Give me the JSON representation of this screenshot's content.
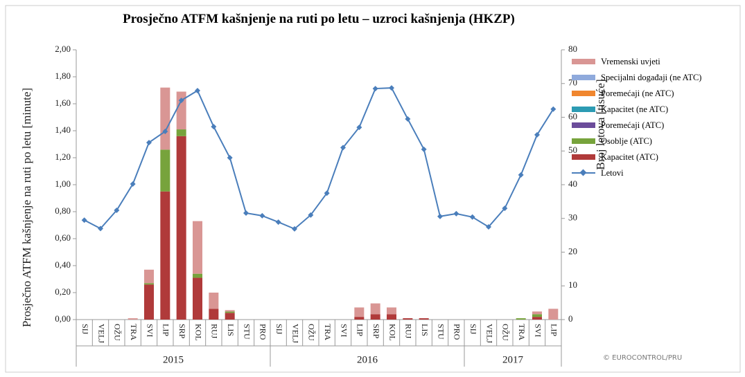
{
  "chart_data": {
    "type": "bar",
    "title": "Prosječno ATFM kašnjenje na ruti po letu – uzroci kašnjenja (HKZP)",
    "y_label": "Prosječno ATFM kašnjenje na ruti po letu [minute]",
    "y2_label": "Broj letova [tisuće]",
    "source": "© EUROCONTROL/PRU",
    "groups": [
      {
        "name": "2015",
        "categories": [
          "SIJ",
          "VELJ",
          "OŽU",
          "TRA",
          "SVI",
          "LIP",
          "SRP",
          "KOL",
          "RUJ",
          "LIS",
          "STU",
          "PRO"
        ]
      },
      {
        "name": "2016",
        "categories": [
          "SIJ",
          "VELJ",
          "OŽU",
          "TRA",
          "SVI",
          "LIP",
          "SRP",
          "KOL",
          "RUJ",
          "LIS",
          "STU",
          "PRO"
        ]
      },
      {
        "name": "2017",
        "categories": [
          "SIJ",
          "VELJ",
          "OŽU",
          "TRA",
          "SVI",
          "LIP"
        ]
      }
    ],
    "stacked": true,
    "grid": false,
    "legend": "right",
    "ylim": [
      0,
      2
    ],
    "yticks": [
      {
        "value": 0,
        "label": "0,00"
      },
      {
        "value": 0.2,
        "label": "0,20"
      },
      {
        "value": 0.4,
        "label": "0,40"
      },
      {
        "value": 0.6,
        "label": "0,60"
      },
      {
        "value": 0.8,
        "label": "0,80"
      },
      {
        "value": 1,
        "label": "1,00"
      },
      {
        "value": 1.2,
        "label": "1,20"
      },
      {
        "value": 1.4,
        "label": "1,40"
      },
      {
        "value": 1.6,
        "label": "1,60"
      },
      {
        "value": 1.8,
        "label": "1,80"
      },
      {
        "value": 2,
        "label": "2,00"
      }
    ],
    "y2lim": [
      0,
      80
    ],
    "y2ticks": [
      0,
      10,
      20,
      30,
      40,
      50,
      60,
      70,
      80
    ],
    "series": [
      {
        "name": "Kapacitet (ATC)",
        "color": "#b03a3a",
        "values": [
          0,
          0,
          0,
          0,
          0.26,
          0.95,
          1.36,
          0.31,
          0.08,
          0.05,
          0,
          0,
          0,
          0,
          0,
          0,
          0,
          0.02,
          0.04,
          0.04,
          0.01,
          0.01,
          0,
          0,
          0,
          0,
          0,
          0,
          0.02,
          0
        ]
      },
      {
        "name": "Osoblje (ATC)",
        "color": "#77a33c",
        "values": [
          0,
          0,
          0,
          0,
          0.01,
          0.31,
          0.05,
          0.03,
          0,
          0.01,
          0,
          0,
          0,
          0,
          0,
          0,
          0,
          0,
          0,
          0,
          0,
          0,
          0,
          0,
          0,
          0,
          0,
          0.01,
          0.02,
          0
        ]
      },
      {
        "name": "Poremećaji (ATC)",
        "color": "#6b4c9a",
        "values": [
          0,
          0,
          0,
          0,
          0,
          0,
          0,
          0,
          0,
          0,
          0,
          0,
          0,
          0,
          0,
          0,
          0,
          0,
          0,
          0,
          0,
          0,
          0,
          0,
          0,
          0,
          0,
          0,
          0,
          0
        ]
      },
      {
        "name": "Kapacitet (ne ATC)",
        "color": "#2c9bb3",
        "values": [
          0,
          0,
          0,
          0,
          0,
          0,
          0,
          0,
          0,
          0,
          0,
          0,
          0,
          0,
          0,
          0,
          0,
          0,
          0,
          0,
          0,
          0,
          0,
          0,
          0,
          0,
          0,
          0,
          0,
          0
        ]
      },
      {
        "name": "Poremećaji (ne ATC)",
        "color": "#f0862e",
        "values": [
          0,
          0,
          0,
          0,
          0,
          0,
          0,
          0,
          0,
          0,
          0,
          0,
          0,
          0,
          0,
          0,
          0,
          0,
          0,
          0,
          0,
          0,
          0,
          0,
          0,
          0,
          0,
          0,
          0,
          0
        ]
      },
      {
        "name": "Specijalni događaji (ne ATC)",
        "color": "#8faadc",
        "values": [
          0,
          0,
          0,
          0,
          0,
          0,
          0,
          0,
          0,
          0,
          0,
          0,
          0,
          0,
          0,
          0,
          0,
          0,
          0,
          0,
          0,
          0,
          0,
          0,
          0,
          0,
          0,
          0,
          0,
          0
        ]
      },
      {
        "name": "Vremenski uvjeti",
        "color": "#d99694",
        "values": [
          0,
          0,
          0,
          0.01,
          0.1,
          0.46,
          0.28,
          0.39,
          0.12,
          0.01,
          0,
          0,
          0,
          0,
          0,
          0,
          0,
          0.07,
          0.08,
          0.05,
          0,
          0,
          0,
          0,
          0,
          0,
          0,
          0,
          0.02,
          0.08
        ]
      },
      {
        "name": "Letovi",
        "type": "line",
        "axis": "y2",
        "color": "#4a7ebb",
        "values": [
          29.5,
          27,
          32.4,
          40.2,
          52.5,
          55.8,
          65,
          67.9,
          57.2,
          48,
          31.6,
          30.8,
          28.9,
          26.9,
          31,
          37.5,
          51,
          57,
          68.5,
          68.7,
          59.5,
          50.5,
          30.6,
          31.4,
          30.4,
          27.5,
          33,
          42.9,
          54.8,
          62.4
        ]
      }
    ]
  }
}
